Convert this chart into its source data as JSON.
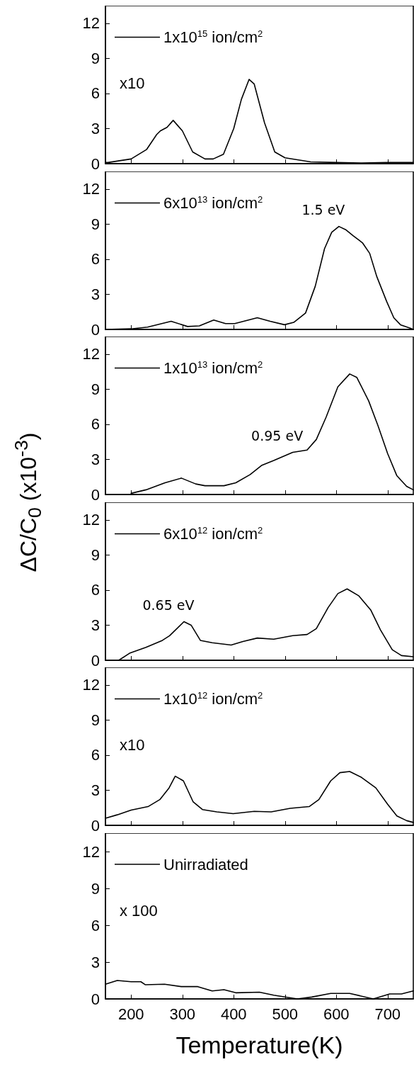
{
  "chart_data": [
    {
      "type": "line",
      "xlim": [
        150,
        750
      ],
      "xticks": [
        200,
        300,
        400,
        500,
        600,
        700
      ],
      "ylim": [
        0,
        13.5
      ],
      "yticks": [
        0,
        3,
        6,
        9,
        12
      ],
      "tick_labels": "y",
      "legend": "top left",
      "marker": "none",
      "line_style": "solid",
      "grid": false,
      "annotations": [
        "x10"
      ],
      "series": [
        {
          "name": "1x10$^{15}$ ion/cm$^{2}$",
          "color": "#000000",
          "x": [
            150,
            155,
            200,
            230,
            250,
            257,
            270,
            282,
            300,
            320,
            344,
            360,
            380,
            400,
            415,
            430,
            440,
            460,
            480,
            500,
            550,
            600,
            650,
            700,
            750
          ],
          "values": [
            0.1,
            0.1,
            0.4,
            1.2,
            2.5,
            2.8,
            3.1,
            3.7,
            2.8,
            1.0,
            0.4,
            0.4,
            0.8,
            3.0,
            5.5,
            7.2,
            6.8,
            3.5,
            1.0,
            0.5,
            0.15,
            0.1,
            0.05,
            0.1,
            0.1
          ]
        }
      ]
    },
    {
      "type": "line",
      "xlim": [
        150,
        750
      ],
      "xticks": [
        200,
        300,
        400,
        500,
        600,
        700
      ],
      "ylim": [
        0,
        13.5
      ],
      "yticks": [
        0,
        3,
        6,
        9,
        12
      ],
      "tick_labels": "y",
      "legend": "top left",
      "marker": "none",
      "line_style": "solid",
      "grid": false,
      "annotations": [
        {
          "text": "1.5 eV",
          "x": 605,
          "y": 8.8
        }
      ],
      "series": [
        {
          "name": "6x10$^{13}$ ion/cm$^{2}$",
          "color": "#000000",
          "x": [
            150,
            200,
            232,
            278,
            310,
            333,
            361,
            384,
            402,
            446,
            471,
            499,
            517,
            540,
            559,
            577,
            591,
            605,
            619,
            633,
            651,
            665,
            679,
            698,
            712,
            725,
            744,
            750
          ],
          "values": [
            0,
            0.05,
            0.2,
            0.7,
            0.25,
            0.3,
            0.8,
            0.5,
            0.5,
            1.0,
            0.7,
            0.4,
            0.6,
            1.4,
            3.7,
            6.9,
            8.3,
            8.8,
            8.5,
            8.0,
            7.4,
            6.5,
            4.5,
            2.4,
            1.0,
            0.4,
            0.1,
            0
          ]
        }
      ]
    },
    {
      "type": "line",
      "xlim": [
        150,
        750
      ],
      "xticks": [
        200,
        300,
        400,
        500,
        600,
        700
      ],
      "ylim": [
        0,
        13.5
      ],
      "yticks": [
        0,
        3,
        6,
        9,
        12
      ],
      "tick_labels": "y",
      "legend": "top left",
      "marker": "none",
      "line_style": "solid",
      "grid": false,
      "ylabel": "ΔC/C$_{0}$ (x10$^{-3}$)",
      "annotations": [
        {
          "text": "0.95 eV",
          "x": 515,
          "y": 3.6
        }
      ],
      "series": [
        {
          "name": "1x10$^{13}$ ion/cm$^{2}$",
          "color": "#000000",
          "x": [
            200,
            229,
            266,
            298,
            326,
            344,
            381,
            404,
            432,
            455,
            478,
            515,
            543,
            561,
            580,
            603,
            626,
            640,
            663,
            681,
            700,
            718,
            737,
            750
          ],
          "values": [
            0.1,
            0.4,
            1.0,
            1.4,
            0.9,
            0.75,
            0.75,
            1.0,
            1.7,
            2.5,
            2.9,
            3.6,
            3.8,
            4.7,
            6.6,
            9.2,
            10.3,
            10.0,
            8.0,
            5.9,
            3.5,
            1.6,
            0.7,
            0.4
          ]
        }
      ]
    },
    {
      "type": "line",
      "xlim": [
        150,
        750
      ],
      "xticks": [
        200,
        300,
        400,
        500,
        600,
        700
      ],
      "ylim": [
        0,
        13.5
      ],
      "yticks": [
        0,
        3,
        6,
        9,
        12
      ],
      "tick_labels": "y",
      "legend": "top left",
      "marker": "none",
      "line_style": "solid",
      "grid": false,
      "annotations": [
        {
          "text": "0.65 eV",
          "x": 303,
          "y": 3.3
        }
      ],
      "series": [
        {
          "name": "6x10$^{12}$ ion/cm$^{2}$",
          "color": "#000000",
          "x": [
            176,
            197,
            229,
            261,
            275,
            303,
            317,
            335,
            358,
            395,
            418,
            446,
            478,
            515,
            543,
            561,
            584,
            603,
            621,
            644,
            667,
            686,
            709,
            727,
            750
          ],
          "values": [
            0,
            0.6,
            1.1,
            1.7,
            2.1,
            3.3,
            3.0,
            1.7,
            1.5,
            1.3,
            1.6,
            1.9,
            1.8,
            2.1,
            2.2,
            2.7,
            4.5,
            5.7,
            6.1,
            5.5,
            4.3,
            2.6,
            0.9,
            0.4,
            0.3
          ]
        }
      ]
    },
    {
      "type": "line",
      "xlim": [
        150,
        750
      ],
      "xticks": [
        200,
        300,
        400,
        500,
        600,
        700
      ],
      "ylim": [
        0,
        13.5
      ],
      "yticks": [
        0,
        3,
        6,
        9,
        12
      ],
      "tick_labels": "y",
      "legend": "top left",
      "marker": "none",
      "line_style": "solid",
      "grid": false,
      "annotations": [
        "x10"
      ],
      "series": [
        {
          "name": "1x10$^{12}$ ion/cm$^{2}$",
          "color": "#000000",
          "x": [
            150,
            173,
            200,
            233,
            256,
            274,
            286,
            302,
            321,
            339,
            367,
            399,
            440,
            473,
            510,
            547,
            566,
            589,
            607,
            626,
            649,
            677,
            700,
            718,
            737,
            750
          ],
          "values": [
            0.6,
            0.9,
            1.3,
            1.6,
            2.2,
            3.2,
            4.2,
            3.8,
            2.0,
            1.35,
            1.15,
            1.0,
            1.2,
            1.15,
            1.45,
            1.6,
            2.2,
            3.8,
            4.5,
            4.6,
            4.1,
            3.2,
            1.8,
            0.8,
            0.4,
            0.25
          ]
        }
      ]
    },
    {
      "type": "line",
      "xlim": [
        150,
        750
      ],
      "xticks": [
        200,
        300,
        400,
        500,
        600,
        700
      ],
      "ylim": [
        0,
        13.5
      ],
      "yticks": [
        0,
        3,
        6,
        9,
        12
      ],
      "legend": "top left",
      "marker": "none",
      "line_style": "solid",
      "grid": false,
      "xlabel": "Temperature(K)",
      "annotations": [
        "x 100"
      ],
      "series": [
        {
          "name": "Unirradiated",
          "color": "#000000",
          "x": [
            150,
            173,
            200,
            219,
            228,
            265,
            298,
            330,
            358,
            381,
            404,
            450,
            478,
            524,
            552,
            589,
            626,
            672,
            704,
            727,
            750
          ],
          "values": [
            1.2,
            1.5,
            1.4,
            1.4,
            1.15,
            1.2,
            1.0,
            1.0,
            0.65,
            0.75,
            0.5,
            0.55,
            0.3,
            0,
            0.15,
            0.45,
            0.45,
            0,
            0.4,
            0.4,
            0.65
          ]
        }
      ]
    }
  ]
}
